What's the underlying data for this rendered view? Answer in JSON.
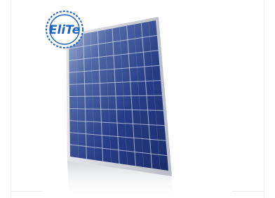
{
  "badge": {
    "label": "EliTe"
  }
}
